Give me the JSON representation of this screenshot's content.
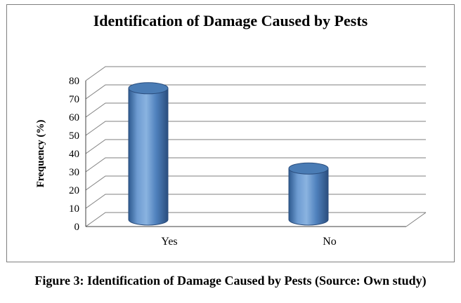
{
  "figure": {
    "caption": "Figure 3: Identification of Damage Caused by Pests (Source: Own study)"
  },
  "chart_data": {
    "type": "bar",
    "subtype": "cylinder-3d",
    "title": "Identification of Damage Caused by Pests",
    "categories": [
      "Yes",
      "No"
    ],
    "values": [
      72,
      28
    ],
    "xlabel": "",
    "ylabel": "Frequency (%)",
    "ylim": [
      0,
      80
    ],
    "ytick_step": 10,
    "grid": true,
    "legend": false,
    "bar_color": "#4f81bd",
    "bar_edge_color": "#2b4e7e",
    "gridline_color": "#7f7f7f",
    "axis_color": "#404040"
  }
}
